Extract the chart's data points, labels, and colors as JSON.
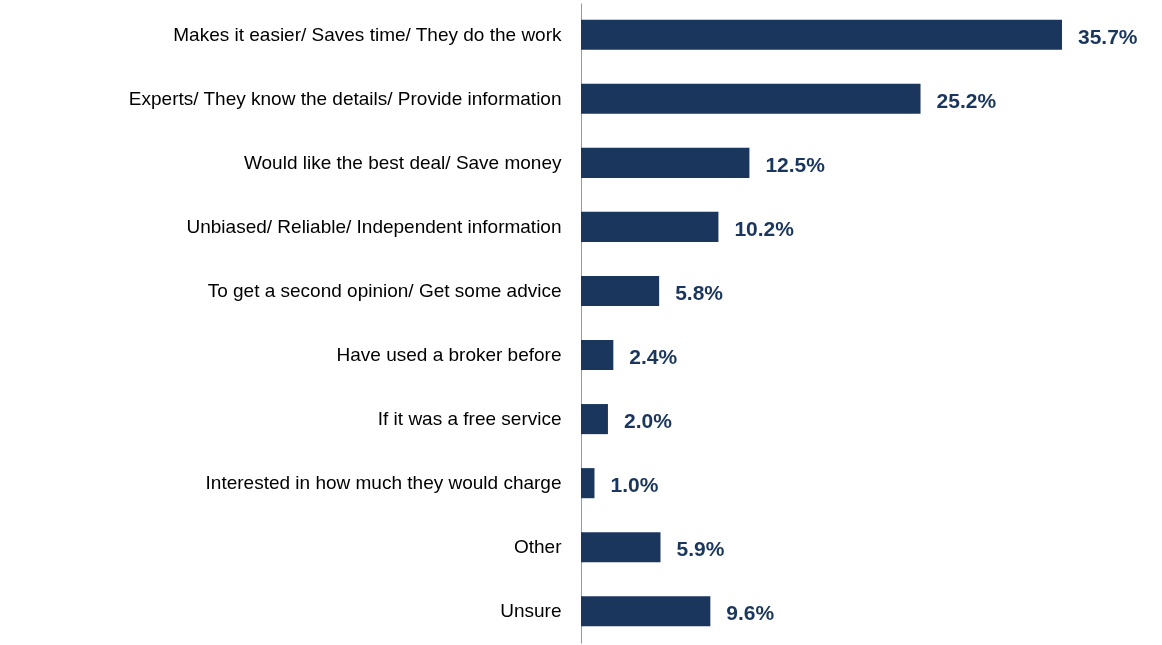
{
  "chart_data": {
    "type": "bar",
    "orientation": "horizontal",
    "categories": [
      "Makes it easier/ Saves time/ They do the work",
      "Experts/ They know the details/ Provide information",
      "Would like the best deal/ Save money",
      "Unbiased/ Reliable/ Independent information",
      "To get a second opinion/ Get some advice",
      "Have used a broker before",
      "If it was a free service",
      "Interested in how much they would charge",
      "Other",
      "Unsure"
    ],
    "values": [
      35.7,
      25.2,
      12.5,
      10.2,
      5.8,
      2.4,
      2.0,
      1.0,
      5.9,
      9.6
    ],
    "value_labels": [
      "35.7%",
      "25.2%",
      "12.5%",
      "10.2%",
      "5.8%",
      "2.4%",
      "2.0%",
      "1.0%",
      "5.9%",
      "9.6%"
    ],
    "color": "#1b365d",
    "tick_labels": "y"
  }
}
